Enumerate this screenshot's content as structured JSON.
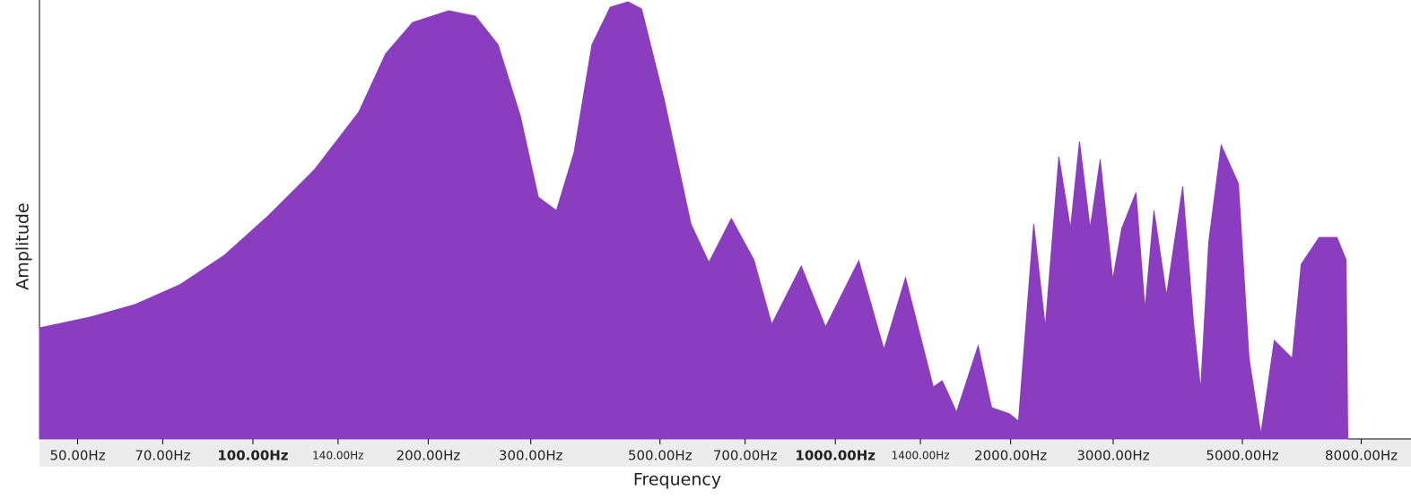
{
  "chart_data": {
    "type": "area",
    "xlabel": "Frequency",
    "ylabel": "Amplitude",
    "xscale": "log",
    "color": "#8a3dbf",
    "xlim": [
      43,
      9300
    ],
    "ylim": [
      0,
      490
    ],
    "xticks": [
      {
        "value": 50,
        "label": "50.00Hz"
      },
      {
        "value": 70,
        "label": "70.00Hz"
      },
      {
        "value": 100,
        "label": "100.00Hz",
        "bold": true
      },
      {
        "value": 140,
        "label": "140.00Hz",
        "small": true
      },
      {
        "value": 200,
        "label": "200.00Hz"
      },
      {
        "value": 300,
        "label": "300.00Hz"
      },
      {
        "value": 500,
        "label": "500.00Hz"
      },
      {
        "value": 700,
        "label": "700.00Hz"
      },
      {
        "value": 1000,
        "label": "1000.00Hz",
        "bold": true
      },
      {
        "value": 1400,
        "label": "1400.00Hz",
        "small": true
      },
      {
        "value": 2000,
        "label": "2000.00Hz"
      },
      {
        "value": 3000,
        "label": "3000.00Hz"
      },
      {
        "value": 5000,
        "label": "5000.00Hz"
      },
      {
        "value": 8000,
        "label": "8000.00Hz"
      }
    ],
    "x": [
      43,
      52.5,
      62.7,
      74.8,
      89.3,
      106.6,
      127.3,
      152,
      169,
      188,
      216.8,
      241,
      263.6,
      288,
      309,
      332,
      356,
      382,
      410.6,
      440.7,
      464.9,
      507.9,
      565,
      606.6,
      663,
      724.6,
      777.7,
      874,
      962,
      1097,
      1212,
      1320,
      1473,
      1526,
      1615,
      1759,
      1855,
      1991,
      2063,
      2191,
      2294,
      2420,
      2534,
      2626,
      2739,
      2850,
      2995,
      3103,
      3283,
      3402,
      3525,
      3704,
      3949,
      4121,
      4240,
      4377,
      4598,
      4922,
      5134,
      5379,
      5672,
      6089,
      6309,
      6773,
      7267,
      7534,
      7585
    ],
    "values": [
      124,
      136,
      150,
      172,
      205,
      250,
      300,
      365,
      430,
      465,
      478,
      472,
      440,
      360,
      270,
      255,
      320,
      440,
      482,
      488,
      480,
      380,
      240,
      197,
      246,
      200,
      128,
      193,
      125,
      199,
      100,
      180,
      58,
      65,
      30,
      104,
      35,
      28,
      20,
      240,
      125,
      315,
      235,
      332,
      235,
      312,
      178,
      235,
      275,
      145,
      255,
      160,
      282,
      130,
      55,
      220,
      328,
      285,
      90,
      5,
      110,
      90,
      195,
      225,
      225,
      200,
      0
    ]
  }
}
